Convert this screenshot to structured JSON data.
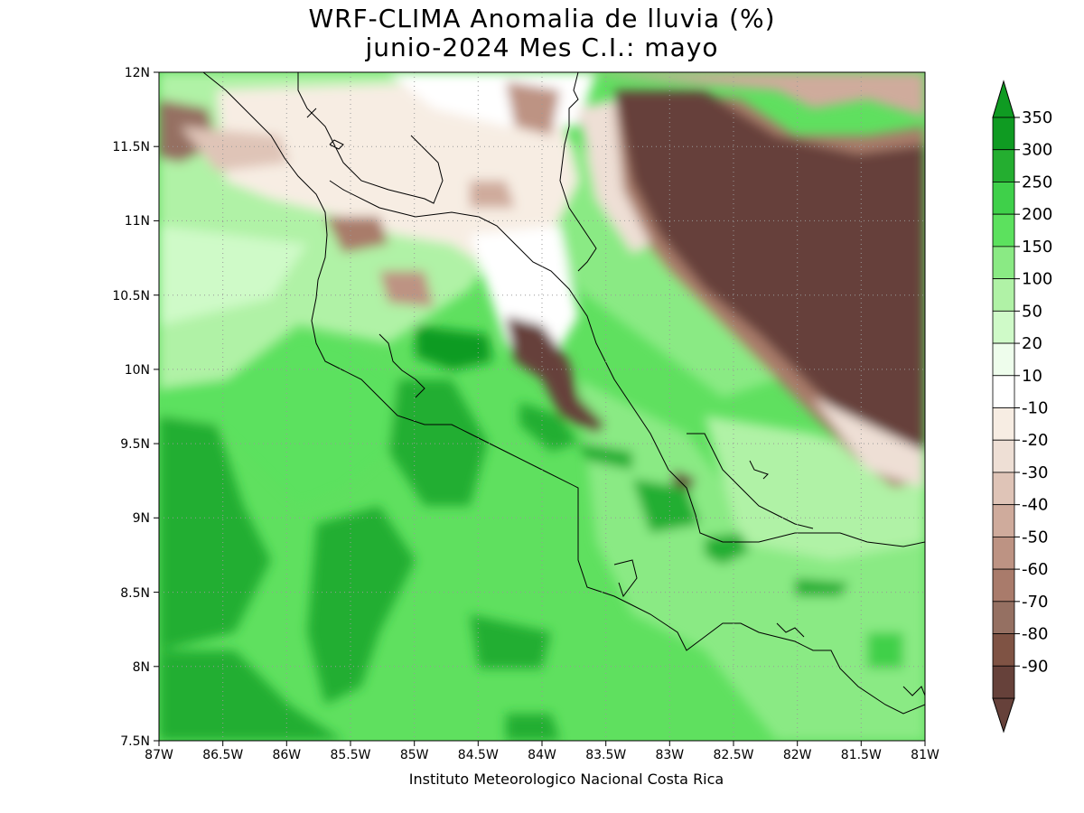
{
  "title_line1": "WRF-CLIMA Anomalia de lluvia (%)",
  "title_line2": "junio-2024 Mes C.I.: mayo",
  "footer": "Instituto Meteorologico Nacional Costa Rica",
  "map": {
    "lon_range": [
      -87,
      -81
    ],
    "lat_range": [
      7.5,
      12
    ],
    "x_ticks": [
      "87W",
      "86.5W",
      "86W",
      "85.5W",
      "85W",
      "84.5W",
      "84W",
      "83.5W",
      "83W",
      "82.5W",
      "82W",
      "81.5W",
      "81W"
    ],
    "y_ticks": [
      "12N",
      "11.5N",
      "11N",
      "10.5N",
      "10N",
      "9.5N",
      "9N",
      "8.5N",
      "8N",
      "7.5N"
    ],
    "gridlines": "dotted"
  },
  "colorbar": {
    "labels": [
      "350",
      "300",
      "250",
      "200",
      "150",
      "100",
      "50",
      "20",
      "10",
      "-10",
      "-20",
      "-30",
      "-40",
      "-50",
      "-60",
      "-70",
      "-80",
      "-90"
    ],
    "colors": [
      "#0f9b22",
      "#24ae30",
      "#3fd04a",
      "#5ce15e",
      "#8aea84",
      "#b0f2a6",
      "#cffac8",
      "#eefdec",
      "#ffffff",
      "#f7ede3",
      "#eedfd5",
      "#dfc4b7",
      "#cfab9c",
      "#bd9383",
      "#a97b6b",
      "#957062",
      "#7f5344",
      "#66413a"
    ]
  }
}
